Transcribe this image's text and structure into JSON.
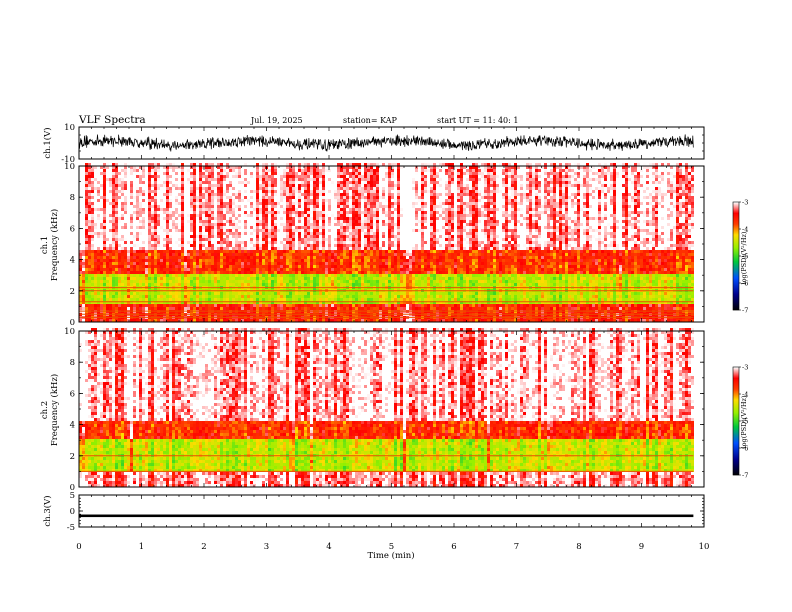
{
  "header": {
    "title": "VLF Spectra",
    "date": "Jul. 19, 2025",
    "station": "station= KAP",
    "start": "start UT = 11: 40: 1"
  },
  "chart_data": [
    {
      "type": "line",
      "panel": "ch1-waveform",
      "ylabel": "ch.1(V)",
      "ylim": [
        -10,
        10
      ],
      "yticks": [
        "10",
        "-10"
      ],
      "x_range_min": [
        0,
        9.83
      ],
      "amplitude_range_V": [
        -9,
        9
      ]
    },
    {
      "type": "heatmap",
      "panel": "ch1-spectrogram",
      "ylabel_line1": "ch.1",
      "ylabel_line2": "Frequency (kHz)",
      "ylim": [
        0,
        10
      ],
      "yticks": [
        "0",
        "2",
        "4",
        "6",
        "8",
        "10"
      ],
      "x_range_min": [
        0,
        9.83
      ],
      "colorbar": {
        "label": "log(PSD)(V²/Hz)",
        "range": [
          -7,
          -3
        ],
        "ticks": [
          "-3",
          "-4",
          "-5",
          "-6",
          "-7"
        ]
      },
      "bands_kHz": [
        {
          "from": 0,
          "to": 1,
          "level": -3.6
        },
        {
          "from": 1,
          "to": 3,
          "level": -4.5
        },
        {
          "from": 3,
          "to": 4.5,
          "level": -3.7
        },
        {
          "from": 4.5,
          "to": 10,
          "level": -3.1
        }
      ],
      "narrowband_lines_kHz": [
        0.3,
        0.5,
        0.7,
        1.3,
        2.0,
        2.2
      ]
    },
    {
      "type": "heatmap",
      "panel": "ch2-spectrogram",
      "ylabel_line1": "ch.2",
      "ylabel_line2": "Frequency (kHz)",
      "ylim": [
        0,
        10
      ],
      "yticks": [
        "0",
        "2",
        "4",
        "6",
        "8",
        "10"
      ],
      "x_range_min": [
        0,
        9.83
      ],
      "colorbar": {
        "label": "log(PSD)(V²/Hz)",
        "range": [
          -7,
          -3
        ],
        "ticks": [
          "-3",
          "-4",
          "-5",
          "-6",
          "-7"
        ]
      },
      "bands_kHz": [
        {
          "from": 0,
          "to": 0.8,
          "level": -3.2
        },
        {
          "from": 0.8,
          "to": 3,
          "level": -4.5
        },
        {
          "from": 3,
          "to": 4.2,
          "level": -3.7
        },
        {
          "from": 4.2,
          "to": 10,
          "level": -3.1
        }
      ],
      "narrowband_lines_kHz": [
        1.0,
        2.0
      ]
    },
    {
      "type": "line",
      "panel": "ch3-waveform",
      "ylabel": "ch.3(V)",
      "ylim": [
        -5,
        5
      ],
      "yticks": [
        "5",
        "0",
        "-5"
      ],
      "x_range_min": [
        0,
        9.83
      ],
      "center_V": -1.5,
      "amplitude_range_V": [
        -1.9,
        -1.1
      ]
    }
  ],
  "x_axis": {
    "label": "Time (min)",
    "range": [
      0,
      10
    ],
    "ticks": [
      "0",
      "1",
      "2",
      "3",
      "4",
      "5",
      "6",
      "7",
      "8",
      "9",
      "10"
    ]
  }
}
